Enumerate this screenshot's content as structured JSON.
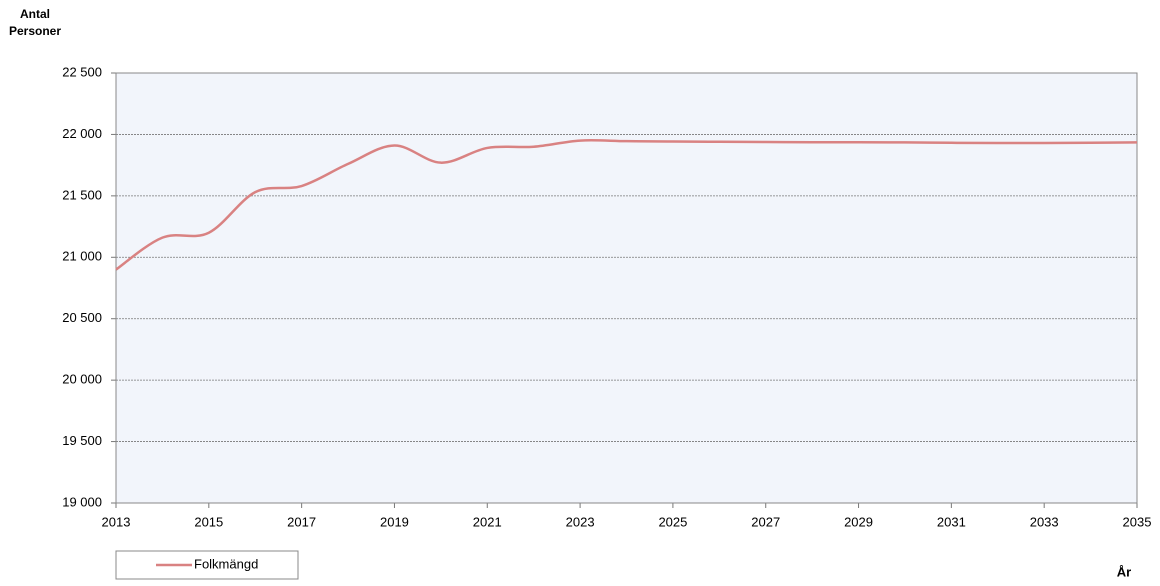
{
  "chart_data": {
    "type": "line",
    "y_label": "Antal Personer",
    "x_label": "År",
    "x": [
      2013,
      2014,
      2015,
      2016,
      2017,
      2018,
      2019,
      2020,
      2021,
      2022,
      2023,
      2024,
      2025,
      2026,
      2027,
      2028,
      2029,
      2030,
      2031,
      2032,
      2033,
      2034,
      2035
    ],
    "series": [
      {
        "name": "Folkmängd",
        "color": "#d98282",
        "values": [
          20900,
          21160,
          21200,
          21530,
          21580,
          21760,
          21910,
          21770,
          21890,
          21900,
          21950,
          21945,
          21942,
          21940,
          21938,
          21936,
          21936,
          21935,
          21932,
          21930,
          21930,
          21932,
          21935
        ]
      }
    ],
    "xlim": [
      2013,
      2035
    ],
    "xticks": [
      2013,
      2015,
      2017,
      2019,
      2021,
      2023,
      2025,
      2027,
      2029,
      2031,
      2033,
      2035
    ],
    "ylim": [
      19000,
      22500
    ],
    "yticks": [
      {
        "value": 19000,
        "label": "19 000"
      },
      {
        "value": 19500,
        "label": "19 500"
      },
      {
        "value": 20000,
        "label": "20 000"
      },
      {
        "value": 20500,
        "label": "20 500"
      },
      {
        "value": 21000,
        "label": "21 000"
      },
      {
        "value": 21500,
        "label": "21 500"
      },
      {
        "value": 22000,
        "label": "22 000"
      },
      {
        "value": 22500,
        "label": "22 500"
      }
    ],
    "grid": true,
    "legend": "bottom-left"
  }
}
